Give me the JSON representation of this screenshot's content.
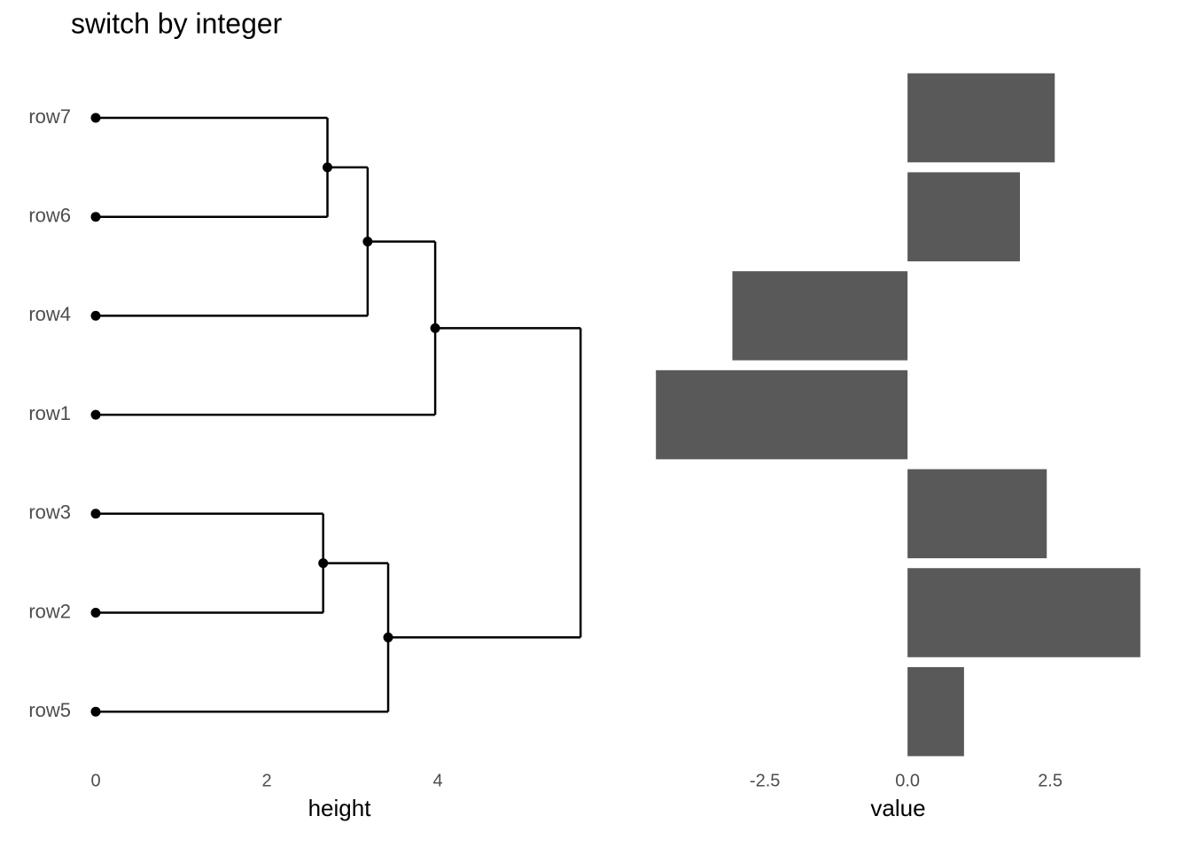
{
  "title": "switch by integer",
  "chart_data": [
    {
      "type": "dendrogram",
      "x_label": "height",
      "xlim": [
        -0.1,
        5.8
      ],
      "xticks": [
        0,
        2,
        4
      ],
      "tree": {
        "height": 5.67,
        "children": [
          {
            "height": 3.97,
            "children": [
              {
                "height": 3.18,
                "children": [
                  {
                    "height": 2.71,
                    "children": [
                      {
                        "label": "row7"
                      },
                      {
                        "label": "row6"
                      }
                    ]
                  },
                  {
                    "label": "row4"
                  }
                ]
              },
              {
                "label": "row1"
              }
            ]
          },
          {
            "height": 3.42,
            "children": [
              {
                "height": 2.66,
                "children": [
                  {
                    "label": "row3"
                  },
                  {
                    "label": "row2"
                  }
                ]
              },
              {
                "label": "row5"
              }
            ]
          }
        ]
      }
    },
    {
      "type": "barh",
      "x_label": "value",
      "color": "#595959",
      "values": [
        2.58,
        1.97,
        -3.07,
        -4.41,
        2.44,
        4.08,
        0.99
      ],
      "xlim": [
        -4.63,
        4.3
      ],
      "xticks": [
        -2.5,
        {
          "value": 0,
          "label": "0.0"
        },
        2.5
      ]
    }
  ]
}
